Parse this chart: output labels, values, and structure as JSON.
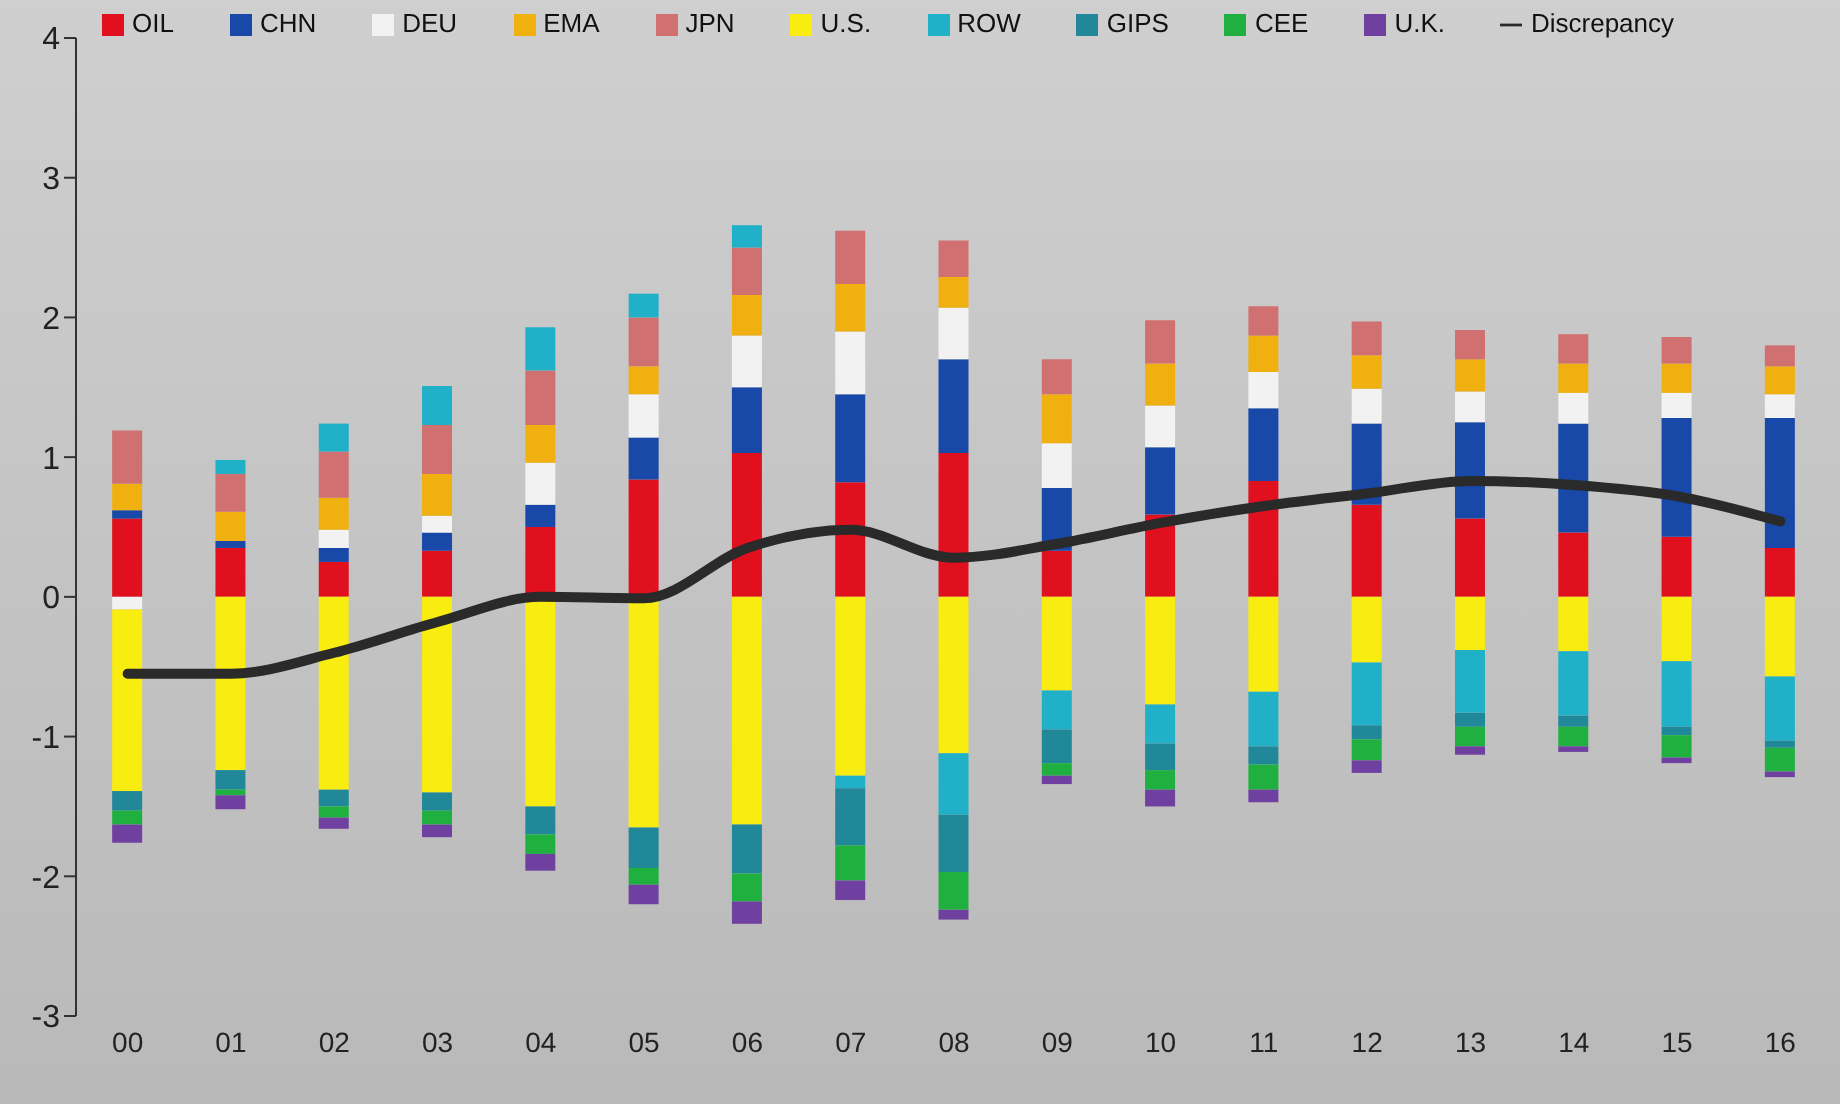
{
  "chart_data": {
    "type": "bar",
    "stacked": true,
    "categories": [
      "00",
      "01",
      "02",
      "03",
      "04",
      "05",
      "06",
      "07",
      "08",
      "09",
      "10",
      "11",
      "12",
      "13",
      "14",
      "15",
      "16"
    ],
    "series": [
      {
        "name": "OIL",
        "color": "#e0101e",
        "values": [
          0.56,
          0.35,
          0.25,
          0.33,
          0.5,
          0.84,
          1.03,
          0.82,
          1.03,
          0.33,
          0.59,
          0.83,
          0.66,
          0.56,
          0.46,
          0.43,
          0.35
        ]
      },
      {
        "name": "CHN",
        "color": "#1848a8",
        "values": [
          0.06,
          0.05,
          0.1,
          0.13,
          0.16,
          0.3,
          0.47,
          0.63,
          0.67,
          0.45,
          0.48,
          0.52,
          0.58,
          0.69,
          0.78,
          0.85,
          0.93
        ]
      },
      {
        "name": "DEU",
        "color": "#f2f2f2",
        "values": [
          -0.09,
          0,
          0.13,
          0.12,
          0.3,
          0.31,
          0.37,
          0.45,
          0.37,
          0.32,
          0.3,
          0.26,
          0.25,
          0.22,
          0.22,
          0.18,
          0.17
        ]
      },
      {
        "name": "EMA",
        "color": "#f0b010",
        "values": [
          0.19,
          0.21,
          0.23,
          0.3,
          0.27,
          0.2,
          0.29,
          0.34,
          0.22,
          0.35,
          0.3,
          0.26,
          0.24,
          0.23,
          0.21,
          0.21,
          0.2
        ]
      },
      {
        "name": "JPN",
        "color": "#d07070",
        "values": [
          0.38,
          0.27,
          0.33,
          0.35,
          0.39,
          0.35,
          0.34,
          0.38,
          0.26,
          0.25,
          0.31,
          0.21,
          0.24,
          0.21,
          0.21,
          0.19,
          0.15
        ]
      },
      {
        "name": "U.S.",
        "color": "#f8ec10",
        "values": [
          -1.3,
          -1.24,
          -1.38,
          -1.4,
          -1.5,
          -1.65,
          -1.63,
          -1.28,
          -1.12,
          -0.67,
          -0.77,
          -0.68,
          -0.47,
          -0.38,
          -0.39,
          -0.46,
          -0.57
        ]
      },
      {
        "name": "ROW",
        "color": "#20b0c8",
        "values": [
          0,
          0.1,
          0.2,
          0.28,
          0.31,
          0.17,
          0.16,
          -0.09,
          -0.44,
          -0.28,
          -0.28,
          -0.39,
          -0.45,
          -0.45,
          -0.46,
          -0.47,
          -0.46
        ]
      },
      {
        "name": "GIPS",
        "color": "#208898",
        "values": [
          -0.14,
          -0.14,
          -0.12,
          -0.13,
          -0.2,
          -0.29,
          -0.35,
          -0.41,
          -0.41,
          -0.24,
          -0.19,
          -0.13,
          -0.1,
          -0.1,
          -0.08,
          -0.06,
          -0.05
        ]
      },
      {
        "name": "CEE",
        "color": "#20b040",
        "values": [
          -0.1,
          -0.04,
          -0.08,
          -0.1,
          -0.14,
          -0.12,
          -0.2,
          -0.25,
          -0.27,
          -0.09,
          -0.14,
          -0.18,
          -0.15,
          -0.14,
          -0.14,
          -0.16,
          -0.17
        ]
      },
      {
        "name": "U.K.",
        "color": "#7040a0",
        "values": [
          -0.13,
          -0.1,
          -0.08,
          -0.09,
          -0.12,
          -0.14,
          -0.16,
          -0.14,
          -0.07,
          -0.06,
          -0.12,
          -0.09,
          -0.09,
          -0.06,
          -0.04,
          -0.04,
          -0.04
        ]
      },
      {
        "name": "Discrepancy",
        "type": "line",
        "color": "#2a2a2a",
        "values": [
          -0.55,
          -0.55,
          -0.4,
          -0.18,
          0.0,
          -0.01,
          0.35,
          0.48,
          0.28,
          0.38,
          0.53,
          0.65,
          0.74,
          0.83,
          0.8,
          0.72,
          0.54
        ]
      }
    ],
    "ylim": [
      -3,
      4
    ],
    "yticks": [
      -3,
      -2,
      -1,
      0,
      1,
      2,
      3,
      4
    ],
    "legend": "top",
    "marker": "none",
    "line_style": "solid"
  }
}
